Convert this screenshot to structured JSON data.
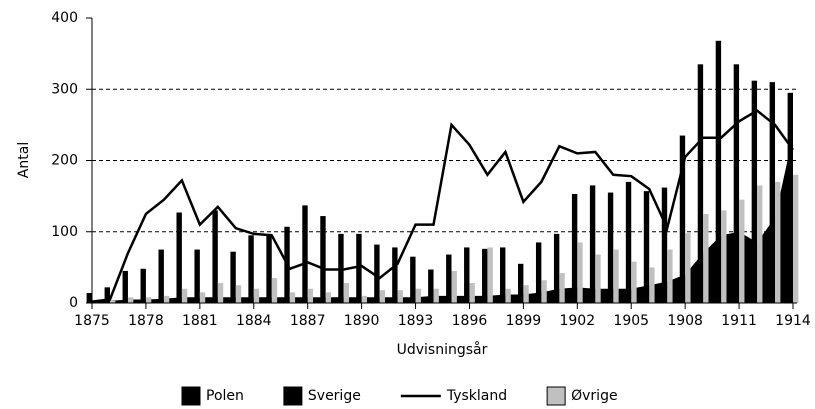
{
  "chart_data": {
    "type": "bar",
    "x_label": "Udvisningsår",
    "y_label": "Antal",
    "x": [
      1875,
      1876,
      1877,
      1878,
      1879,
      1880,
      1881,
      1882,
      1883,
      1884,
      1885,
      1886,
      1887,
      1888,
      1889,
      1890,
      1891,
      1892,
      1893,
      1894,
      1895,
      1896,
      1897,
      1898,
      1899,
      1900,
      1901,
      1902,
      1903,
      1904,
      1905,
      1906,
      1907,
      1908,
      1909,
      1910,
      1911,
      1912,
      1913,
      1914
    ],
    "series": [
      {
        "name": "Polen",
        "type": "area",
        "color": "#000000",
        "values": [
          3,
          3,
          5,
          5,
          6,
          8,
          8,
          8,
          8,
          8,
          8,
          8,
          8,
          8,
          8,
          8,
          8,
          8,
          8,
          10,
          10,
          10,
          10,
          12,
          12,
          15,
          20,
          22,
          20,
          20,
          20,
          25,
          30,
          40,
          70,
          95,
          100,
          85,
          120,
          235
        ]
      },
      {
        "name": "Sverige",
        "type": "bar",
        "color": "#000000",
        "values": [
          14,
          22,
          45,
          48,
          75,
          127,
          75,
          130,
          72,
          95,
          97,
          107,
          137,
          122,
          97,
          97,
          82,
          78,
          65,
          47,
          68,
          78,
          76,
          78,
          55,
          85,
          97,
          153,
          165,
          155,
          170,
          157,
          162,
          235,
          335,
          368,
          335,
          312,
          310,
          295
        ]
      },
      {
        "name": "Tyskland",
        "type": "line",
        "color": "#000000",
        "values": [
          2,
          5,
          70,
          125,
          145,
          172,
          110,
          135,
          105,
          97,
          95,
          48,
          57,
          47,
          47,
          52,
          35,
          55,
          110,
          110,
          250,
          222,
          180,
          212,
          142,
          170,
          220,
          210,
          212,
          180,
          178,
          160,
          105,
          205,
          232,
          232,
          255,
          270,
          250,
          215
        ]
      },
      {
        "name": "Øvrige",
        "type": "bar",
        "color": "#c0c0c0",
        "values": [
          2,
          3,
          8,
          8,
          10,
          20,
          15,
          28,
          25,
          20,
          35,
          15,
          20,
          15,
          28,
          10,
          18,
          18,
          20,
          20,
          45,
          28,
          78,
          20,
          25,
          32,
          42,
          85,
          68,
          75,
          58,
          50,
          75,
          98,
          125,
          130,
          145,
          165,
          170,
          180
        ]
      }
    ],
    "xlim": [
      1875,
      1914
    ],
    "xticks": [
      1875,
      1878,
      1881,
      1884,
      1887,
      1890,
      1893,
      1896,
      1899,
      1902,
      1905,
      1908,
      1911,
      1914
    ],
    "ylim": [
      0,
      400
    ],
    "yticks": [
      0,
      100,
      200,
      300,
      400
    ],
    "grid": true,
    "legend": "bottom"
  }
}
